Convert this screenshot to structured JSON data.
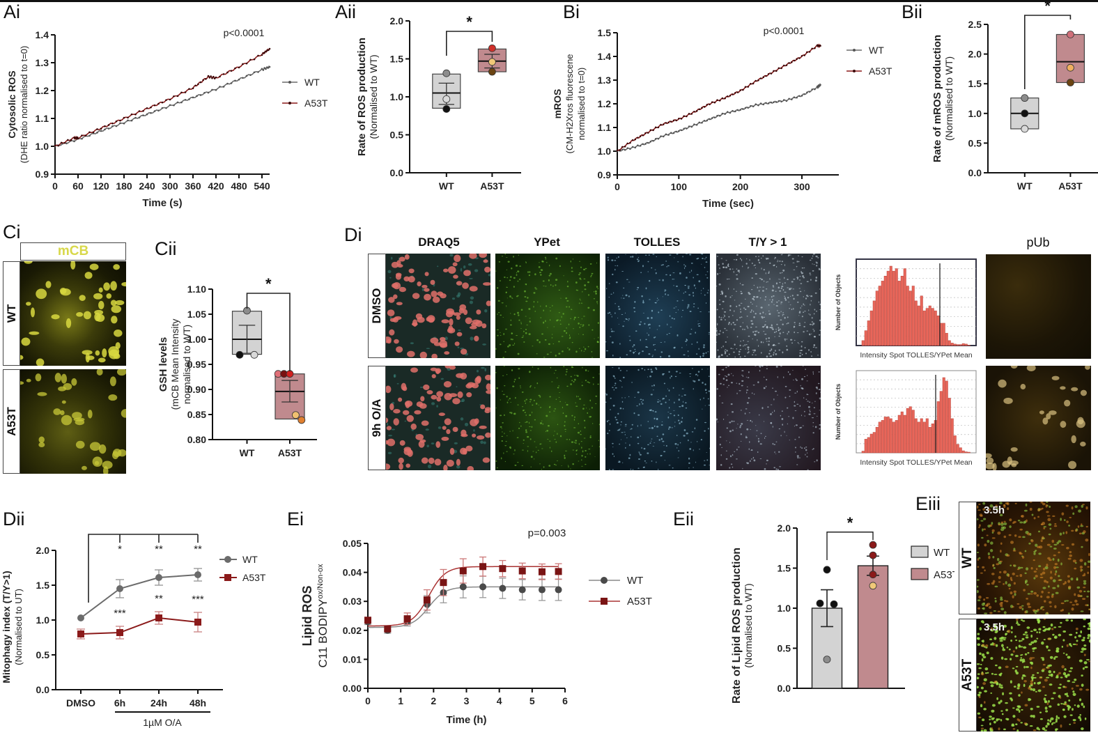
{
  "figure": {
    "panels": {
      "Ai": "Ai",
      "Aii": "Aii",
      "Bi": "Bi",
      "Bii": "Bii",
      "Ci": "Ci",
      "Cii": "Cii",
      "Di": "Di",
      "Dii": "Dii",
      "Ei": "Ei",
      "Eii": "Eii",
      "Eiii": "Eiii"
    },
    "colors": {
      "wt": "#6b6b6b",
      "a53t": "#8b1a1a",
      "wt_fill": "#d3d3d3",
      "a53t_fill": "#c08a8e",
      "hist_bar": "#e8665a"
    }
  },
  "ci": {
    "column_label": "mCB",
    "rows": [
      "WT",
      "A53T"
    ]
  },
  "di": {
    "columns": [
      "DRAQ5",
      "YPet",
      "TOLLES",
      "T/Y > 1"
    ],
    "rows": [
      "DMSO",
      "9h O/A"
    ],
    "pub_label": "pUb",
    "histogram_xlabel": "Intensity Spot TOLLES/YPet Mean",
    "histogram_ylabel": "Number of Objects"
  },
  "eiii": {
    "rows": [
      "WT",
      "A53T"
    ],
    "time_label": "3.5h"
  },
  "chart_data": [
    {
      "id": "Ai",
      "type": "line",
      "title": "",
      "annotation": "p<0.0001",
      "xlabel": "Time (s)",
      "ylabel": "Cytosolic ROS",
      "ylabel2": "(DHE ratio normalised to t=0)",
      "xlim": [
        0,
        560
      ],
      "ylim": [
        0.9,
        1.4
      ],
      "xticks": [
        0,
        60,
        120,
        180,
        240,
        300,
        360,
        420,
        480,
        540
      ],
      "yticks": [
        0.9,
        1.0,
        1.1,
        1.2,
        1.3,
        1.4
      ],
      "legend": "right",
      "series": [
        {
          "name": "WT",
          "x": [
            0,
            60,
            120,
            180,
            240,
            300,
            360,
            420,
            480,
            540,
            560
          ],
          "y": [
            1.0,
            1.025,
            1.055,
            1.085,
            1.115,
            1.145,
            1.175,
            1.205,
            1.24,
            1.275,
            1.285
          ]
        },
        {
          "name": "A53T",
          "x": [
            0,
            50,
            60,
            120,
            180,
            240,
            300,
            360,
            400,
            420,
            480,
            540,
            560
          ],
          "y": [
            1.0,
            1.03,
            1.03,
            1.065,
            1.1,
            1.135,
            1.17,
            1.21,
            1.25,
            1.245,
            1.285,
            1.33,
            1.35
          ]
        }
      ]
    },
    {
      "id": "Aii",
      "type": "box",
      "xlabel": "",
      "ylabel": "Rate of ROS production",
      "ylabel2": "(Normalised to WT)",
      "ylim": [
        0,
        2.0
      ],
      "yticks": [
        0.0,
        0.5,
        1.0,
        1.5,
        2.0
      ],
      "categories": [
        "WT",
        "A53T"
      ],
      "significance": "*",
      "boxes": [
        {
          "name": "WT",
          "min": 0.85,
          "max": 1.3,
          "mean": 1.05,
          "err_low": 0.9,
          "err_high": 1.18,
          "points": [
            1.31,
            0.97,
            0.84
          ],
          "point_colors": [
            "#8c8c8c",
            "#d9d9d9",
            "#111111"
          ]
        },
        {
          "name": "A53T",
          "min": 1.33,
          "max": 1.63,
          "mean": 1.47,
          "err_low": 1.38,
          "err_high": 1.56,
          "points": [
            1.64,
            1.46,
            1.33
          ],
          "point_colors": [
            "#d0302a",
            "#f0c878",
            "#6b4412"
          ]
        }
      ]
    },
    {
      "id": "Bi",
      "type": "line",
      "annotation": "p<0.0001",
      "xlabel": "Time (sec)",
      "ylabel": "mROS",
      "ylabel2": "(CM-H2Xros fluorescene",
      "ylabel3": "normalised to t=0)",
      "xlim": [
        0,
        360
      ],
      "ylim": [
        0.9,
        1.5
      ],
      "xticks": [
        0,
        100,
        200,
        300
      ],
      "yticks": [
        0.9,
        1.0,
        1.1,
        1.2,
        1.3,
        1.4,
        1.5
      ],
      "legend": "right",
      "series": [
        {
          "name": "WT",
          "x": [
            0,
            25,
            50,
            75,
            100,
            125,
            150,
            175,
            200,
            225,
            250,
            275,
            300,
            325,
            330
          ],
          "y": [
            1.0,
            1.015,
            1.035,
            1.065,
            1.085,
            1.11,
            1.135,
            1.16,
            1.175,
            1.195,
            1.205,
            1.215,
            1.235,
            1.27,
            1.28
          ]
        },
        {
          "name": "A53T",
          "x": [
            0,
            25,
            50,
            75,
            100,
            125,
            150,
            175,
            200,
            225,
            250,
            275,
            300,
            325,
            330
          ],
          "y": [
            1.0,
            1.045,
            1.08,
            1.115,
            1.135,
            1.165,
            1.2,
            1.225,
            1.255,
            1.295,
            1.33,
            1.365,
            1.4,
            1.445,
            1.445
          ]
        }
      ]
    },
    {
      "id": "Bii",
      "type": "box",
      "ylabel": "Rate of mROS production",
      "ylabel2": "(Normalised to WT)",
      "ylim": [
        0,
        2.5
      ],
      "yticks": [
        0.0,
        0.5,
        1.0,
        1.5,
        2.0,
        2.5
      ],
      "categories": [
        "WT",
        "A53T"
      ],
      "significance": "*",
      "boxes": [
        {
          "name": "WT",
          "min": 0.74,
          "max": 1.26,
          "mean": 1.0,
          "points": [
            1.26,
            1.0,
            0.74
          ],
          "point_colors": [
            "#8c8c8c",
            "#111111",
            "#d9d9d9"
          ]
        },
        {
          "name": "A53T",
          "min": 1.52,
          "max": 2.33,
          "mean": 1.87,
          "points": [
            2.33,
            1.77,
            1.52
          ],
          "point_colors": [
            "#d0707a",
            "#f0b060",
            "#6b4412"
          ]
        }
      ]
    },
    {
      "id": "Cii",
      "type": "box",
      "ylabel": "GSH levels",
      "ylabel2": "(mCB Mean Intensity",
      "ylabel3": "normalised to WT)",
      "ylim": [
        0.8,
        1.1
      ],
      "yticks": [
        0.8,
        0.85,
        0.9,
        0.95,
        1.0,
        1.05,
        1.1
      ],
      "categories": [
        "WT",
        "A53T"
      ],
      "significance": "*",
      "boxes": [
        {
          "name": "WT",
          "min": 0.97,
          "max": 1.056,
          "mean": 1.0,
          "err_low": 0.972,
          "err_high": 1.028,
          "points": [
            1.057,
            0.969,
            0.969
          ],
          "point_colors": [
            "#8c8c8c",
            "#111111",
            "#d9d9d9"
          ]
        },
        {
          "name": "A53T",
          "min": 0.841,
          "max": 0.931,
          "mean": 0.896,
          "err_low": 0.875,
          "err_high": 0.918,
          "points": [
            0.931,
            0.931,
            0.931,
            0.849,
            0.839
          ],
          "point_colors": [
            "#e07078",
            "#7a1010",
            "#d02020",
            "#f0c070",
            "#e08030"
          ]
        }
      ]
    },
    {
      "id": "Dii",
      "type": "line",
      "xlabel": "1µM O/A",
      "ylabel": "Mitophagy index (T/Y>1)",
      "ylabel2": "(Normalised to UT)",
      "ylim": [
        0,
        2.0
      ],
      "yticks": [
        0.0,
        0.5,
        1.0,
        1.5,
        2.0
      ],
      "categories": [
        "DMSO",
        "6h",
        "24h",
        "48h"
      ],
      "legend": "right",
      "series": [
        {
          "name": "WT",
          "marker": "circle",
          "values": [
            1.03,
            1.45,
            1.61,
            1.65
          ],
          "err": [
            0.0,
            0.13,
            0.11,
            0.09
          ],
          "significance": [
            "",
            "*",
            "**",
            "**"
          ]
        },
        {
          "name": "A53T",
          "marker": "square",
          "values": [
            0.8,
            0.82,
            1.03,
            0.97
          ],
          "err": [
            0.07,
            0.09,
            0.09,
            0.14
          ],
          "significance": [
            "",
            "***",
            "**",
            "***"
          ]
        }
      ]
    },
    {
      "id": "Ei",
      "type": "line",
      "annotation": "p=0.003",
      "xlabel": "Time (h)",
      "ylabel": "Lipid ROS",
      "ylabel2": "C11 BODIPY",
      "ylabel2_sup": "ox/Non-ox",
      "xlim": [
        0,
        6
      ],
      "ylim": [
        0,
        0.05
      ],
      "xticks": [
        0,
        1,
        2,
        3,
        4,
        5,
        6
      ],
      "yticks": [
        0.0,
        0.01,
        0.02,
        0.03,
        0.04,
        0.05
      ],
      "legend": "right",
      "series": [
        {
          "name": "WT",
          "marker": "circle",
          "x": [
            0,
            0.6,
            1.2,
            1.8,
            2.3,
            2.9,
            3.5,
            4.1,
            4.7,
            5.3,
            5.8
          ],
          "y": [
            0.023,
            0.02,
            0.023,
            0.029,
            0.033,
            0.035,
            0.035,
            0.0345,
            0.034,
            0.034,
            0.034
          ],
          "err": [
            0.001,
            0.001,
            0.0015,
            0.003,
            0.0035,
            0.0038,
            0.0037,
            0.0035,
            0.0035,
            0.0037,
            0.0037
          ]
        },
        {
          "name": "A53T",
          "marker": "square",
          "x": [
            0,
            0.6,
            1.2,
            1.8,
            2.3,
            2.9,
            3.5,
            4.1,
            4.7,
            5.3,
            5.8
          ],
          "y": [
            0.0235,
            0.0205,
            0.024,
            0.0305,
            0.0365,
            0.0405,
            0.042,
            0.0413,
            0.0405,
            0.0402,
            0.0403
          ],
          "err": [
            0.001,
            0.001,
            0.002,
            0.0035,
            0.0045,
            0.0042,
            0.0033,
            0.0028,
            0.0027,
            0.0027,
            0.0027
          ]
        }
      ]
    },
    {
      "id": "Eii",
      "type": "bar",
      "ylabel": "Rate of Lipid ROS production",
      "ylabel2": "(Normalised to WT)",
      "ylim": [
        0,
        2.0
      ],
      "yticks": [
        0.0,
        0.5,
        1.0,
        1.5,
        2.0
      ],
      "categories": [
        "WT",
        "A53T"
      ],
      "significance": "*",
      "legend": "right",
      "bars": [
        {
          "name": "WT",
          "value": 1.0,
          "err": 0.23,
          "points": [
            1.48,
            1.06,
            1.05,
            0.36
          ],
          "point_colors": [
            "#111111",
            "#111111",
            "#111111",
            "#8c8c8c"
          ]
        },
        {
          "name": "A53T",
          "value": 1.53,
          "err": 0.12,
          "points": [
            1.79,
            1.66,
            1.42,
            1.28
          ],
          "point_colors": [
            "#8b1a1a",
            "#8b1a1a",
            "#8b1a1a",
            "#f0c878"
          ]
        }
      ]
    },
    {
      "id": "Di-histograms",
      "type": "bar",
      "xlabel": "Intensity Spot TOLLES/YPet Mean",
      "ylabel": "Number of Objects",
      "histograms": [
        {
          "condition": "DMSO",
          "bins": [
            1,
            3,
            5,
            7,
            9,
            11,
            12,
            13,
            14,
            15,
            16,
            15,
            15.5,
            13,
            14,
            15.5,
            12,
            11,
            12,
            9,
            8,
            10,
            7,
            7.5,
            8,
            7.5,
            7,
            6,
            4.5,
            4.5,
            2.5,
            1,
            0.5,
            0.3,
            0.2,
            0.2,
            0.4,
            0.3,
            0.1
          ]
        },
        {
          "condition": "9h O/A",
          "bins": [
            0.5,
            4,
            4.5,
            5.5,
            6,
            7.5,
            9,
            9.5,
            10.5,
            10.5,
            10,
            9,
            9.5,
            11,
            12,
            11,
            13,
            13.5,
            12.5,
            10,
            9,
            10,
            9,
            10,
            7.5,
            8.5,
            9.5,
            15,
            18,
            22,
            21,
            16,
            10,
            5,
            2.5,
            1.5,
            0.6,
            0.3,
            0.2
          ]
        }
      ]
    }
  ]
}
